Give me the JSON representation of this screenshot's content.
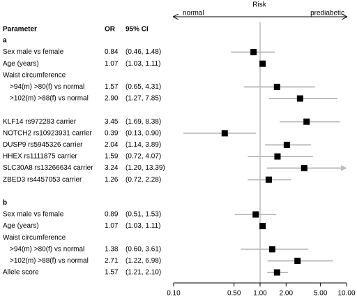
{
  "chart_data": {
    "type": "forest",
    "x_label": "Risk",
    "direction_labels": [
      "normal",
      "prediabetic"
    ],
    "column_headers": [
      "Parameter",
      "OR",
      "95% CI"
    ],
    "categories": [
      "a",
      "Sex male vs female",
      "Age (years)",
      "Waist circumference",
      ">94(m) >80(f) vs normal",
      ">102(m) >88(f) vs normal",
      null,
      "KLF14 rs972283 carrier",
      "NOTCH2 rs10923931 carrier",
      "DUSP9 rs5945326 carrier",
      "HHEX rs1111875 carrier",
      "SLC30A8 rs13266634 carrier",
      "ZBED3 rs4457053 carrier",
      null,
      "b",
      "Sex male vs female",
      "Age (years)",
      "Waist circumference",
      ">94(m) >80(f) vs normal",
      ">102(m) >88(f) vs normal",
      "Allele score"
    ],
    "values": [
      null,
      0.84,
      1.07,
      null,
      1.57,
      2.9,
      null,
      3.45,
      0.39,
      2.04,
      1.59,
      3.24,
      1.26,
      null,
      null,
      0.89,
      1.07,
      null,
      1.38,
      2.71,
      1.57
    ],
    "value_labels": [
      null,
      "0.84",
      "1.07",
      null,
      "1.57",
      "2.90",
      null,
      "3.45",
      "0.39",
      "2.04",
      "1.59",
      "3.24",
      "1.26",
      null,
      null,
      "0.89",
      "1.07",
      null,
      "1.38",
      "2.71",
      "1.57"
    ],
    "lower": [
      null,
      0.46,
      1.03,
      null,
      0.65,
      1.27,
      null,
      1.69,
      0.13,
      1.14,
      0.72,
      1.2,
      0.72,
      null,
      null,
      0.51,
      1.03,
      null,
      0.6,
      1.22,
      1.21
    ],
    "upper": [
      null,
      1.48,
      1.11,
      null,
      4.31,
      7.85,
      null,
      8.38,
      0.9,
      3.89,
      4.07,
      13.39,
      2.28,
      null,
      null,
      1.53,
      1.11,
      null,
      3.61,
      6.98,
      2.1
    ],
    "ci_labels": [
      null,
      "(0.46, 1.48)",
      "(1.03, 1.11)",
      null,
      "(0.65, 4.31)",
      "(1.27, 7.85)",
      null,
      "(1.69, 8.38)",
      "(0.13, 0.90)",
      "(1.14, 3.89)",
      "(0.72, 4.07)",
      "(1.20, 13.39)",
      "(0.72, 2.28)",
      null,
      null,
      "(0.51, 1.53)",
      "(1.03, 1.11)",
      null,
      "(0.60, 3.61)",
      "(1.22, 6.98)",
      "(1.21, 2.10)"
    ],
    "log_x": true,
    "reference": 1,
    "xlim": [
      0.1,
      10
    ],
    "xticks": [
      {
        "value": 0.1,
        "label": "0.10"
      },
      {
        "value": 0.5,
        "label": "0.50"
      },
      {
        "value": 1,
        "label": "1.00"
      },
      {
        "value": 2,
        "label": "2.00"
      },
      {
        "value": 5,
        "label": "5.00"
      },
      {
        "value": 10,
        "label": "10.00"
      }
    ],
    "color": "#000000",
    "ci_color": "#bdbdbd"
  }
}
